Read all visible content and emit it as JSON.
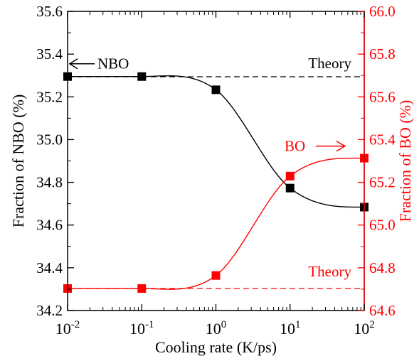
{
  "chart_data": {
    "type": "scatter",
    "xlabel": "Cooling rate (K/ps)",
    "ylabel_left": "Fraction of NBO (%)",
    "ylabel_right": "Fraction of BO (%)",
    "x_scale": "log",
    "x": [
      0.01,
      0.1,
      1,
      10,
      100
    ],
    "xlim": [
      0.01,
      100
    ],
    "x_ticks": [
      {
        "value": 0.01,
        "base": "10",
        "exp": "-2"
      },
      {
        "value": 0.1,
        "base": "10",
        "exp": "-1"
      },
      {
        "value": 1,
        "base": "10",
        "exp": "0"
      },
      {
        "value": 10,
        "base": "10",
        "exp": "1"
      },
      {
        "value": 100,
        "base": "10",
        "exp": "2"
      }
    ],
    "ylim_left": [
      34.2,
      35.6
    ],
    "y_ticks_left": [
      "34.2",
      "34.4",
      "34.6",
      "34.8",
      "35.0",
      "35.2",
      "35.4",
      "35.6"
    ],
    "ylim_right": [
      64.6,
      66.0
    ],
    "y_ticks_right": [
      "64.6",
      "64.8",
      "65.0",
      "65.2",
      "65.4",
      "65.6",
      "65.8",
      "66.0"
    ],
    "series": [
      {
        "name": "NBO",
        "axis": "left",
        "color": "#000000",
        "values": [
          35.295,
          35.295,
          35.233,
          34.773,
          34.684
        ],
        "theory": 35.294,
        "theory_label": "Theory"
      },
      {
        "name": "BO",
        "axis": "right",
        "color": "#ff0000",
        "values": [
          64.703,
          64.703,
          64.764,
          65.229,
          65.313
        ],
        "theory": 64.703,
        "theory_label": "Theory"
      }
    ]
  }
}
